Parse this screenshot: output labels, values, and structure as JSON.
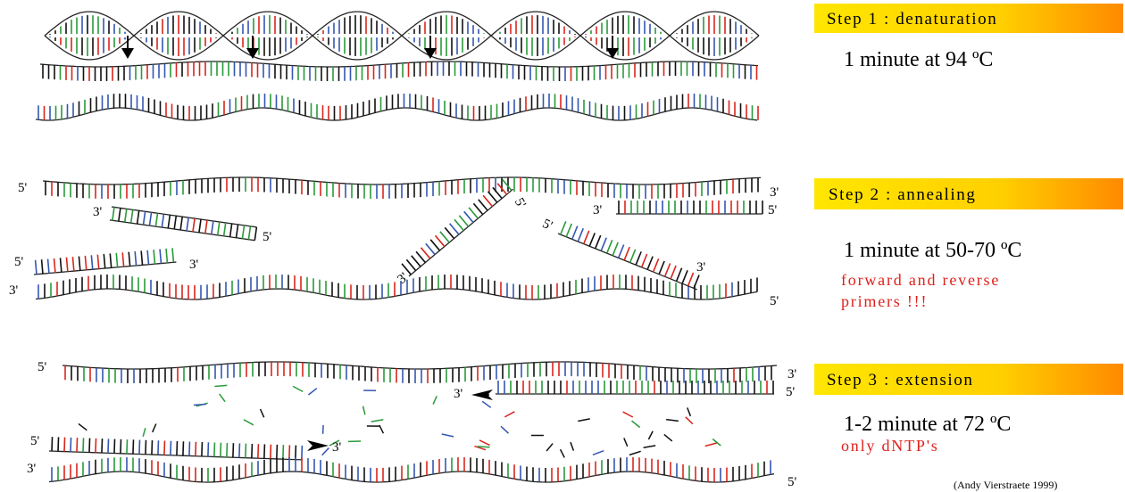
{
  "steps": [
    {
      "title": "Step 1 : denaturation",
      "condition": "1 minute at 94 ºC"
    },
    {
      "title": "Step 2 : annealing",
      "condition": "1 minute at 50-70 ºC",
      "note": [
        "forward and reverse",
        "primers !!!"
      ],
      "ends": [
        "5'",
        "3'",
        "3'",
        "5'",
        "3'",
        "5'",
        "5'",
        "3'",
        "3'",
        "5'",
        "5'",
        "3'",
        "5'",
        "3'"
      ]
    },
    {
      "title": "Step 3 : extension",
      "condition": "1-2 minute at 72 ºC",
      "note": [
        "only dNTP's"
      ],
      "ends": [
        "5'",
        "3'",
        "3'",
        "5'",
        "5'",
        "3'",
        "3'",
        "5'"
      ]
    }
  ],
  "credit": "(Andy Vierstraete 1999)"
}
